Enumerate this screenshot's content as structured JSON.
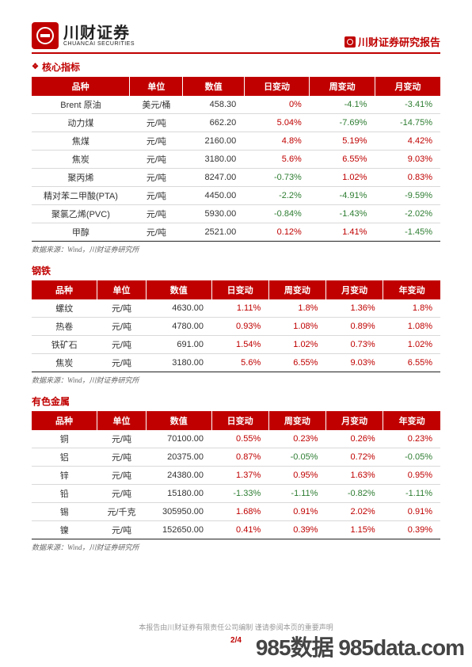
{
  "colors": {
    "primary": "#c00000",
    "positive": "#c00000",
    "negative": "#2e7d32",
    "border": "#d9d9d9",
    "bg": "#ffffff"
  },
  "header": {
    "brand_cn": "川财证券",
    "brand_en": "CHUANCAI SECURITIES",
    "report_label": "川财证券研究报告"
  },
  "section1": {
    "title": "核心指标",
    "columns": [
      "品种",
      "单位",
      "数值",
      "日变动",
      "周变动",
      "月变动"
    ],
    "rows": [
      {
        "name": "Brent 原油",
        "unit": "美元/桶",
        "value": "458.30",
        "d": "0%",
        "w": "-4.1%",
        "m": "-3.41%"
      },
      {
        "name": "动力煤",
        "unit": "元/吨",
        "value": "662.20",
        "d": "5.04%",
        "w": "-7.69%",
        "m": "-14.75%"
      },
      {
        "name": "焦煤",
        "unit": "元/吨",
        "value": "2160.00",
        "d": "4.8%",
        "w": "5.19%",
        "m": "4.42%"
      },
      {
        "name": "焦炭",
        "unit": "元/吨",
        "value": "3180.00",
        "d": "5.6%",
        "w": "6.55%",
        "m": "9.03%"
      },
      {
        "name": "聚丙烯",
        "unit": "元/吨",
        "value": "8247.00",
        "d": "-0.73%",
        "w": "1.02%",
        "m": "0.83%"
      },
      {
        "name": "精对苯二甲酸(PTA)",
        "unit": "元/吨",
        "value": "4450.00",
        "d": "-2.2%",
        "w": "-4.91%",
        "m": "-9.59%"
      },
      {
        "name": "聚氯乙烯(PVC)",
        "unit": "元/吨",
        "value": "5930.00",
        "d": "-0.84%",
        "w": "-1.43%",
        "m": "-2.02%"
      },
      {
        "name": "甲醇",
        "unit": "元/吨",
        "value": "2521.00",
        "d": "0.12%",
        "w": "1.41%",
        "m": "-1.45%"
      }
    ],
    "source": "数据来源：Wind，川财证券研究所"
  },
  "section2": {
    "title": "钢铁",
    "columns": [
      "品种",
      "单位",
      "数值",
      "日变动",
      "周变动",
      "月变动",
      "年变动"
    ],
    "rows": [
      {
        "name": "螺纹",
        "unit": "元/吨",
        "value": "4630.00",
        "d": "1.11%",
        "w": "1.8%",
        "m": "1.36%",
        "y": "1.8%"
      },
      {
        "name": "热卷",
        "unit": "元/吨",
        "value": "4780.00",
        "d": "0.93%",
        "w": "1.08%",
        "m": "0.89%",
        "y": "1.08%"
      },
      {
        "name": "铁矿石",
        "unit": "元/吨",
        "value": "691.00",
        "d": "1.54%",
        "w": "1.02%",
        "m": "0.73%",
        "y": "1.02%"
      },
      {
        "name": "焦炭",
        "unit": "元/吨",
        "value": "3180.00",
        "d": "5.6%",
        "w": "6.55%",
        "m": "9.03%",
        "y": "6.55%"
      }
    ],
    "source": "数据来源：Wind，川财证券研究所"
  },
  "section3": {
    "title": "有色金属",
    "columns": [
      "品种",
      "单位",
      "数值",
      "日变动",
      "周变动",
      "月变动",
      "年变动"
    ],
    "rows": [
      {
        "name": "铜",
        "unit": "元/吨",
        "value": "70100.00",
        "d": "0.55%",
        "w": "0.23%",
        "m": "0.26%",
        "y": "0.23%"
      },
      {
        "name": "铝",
        "unit": "元/吨",
        "value": "20375.00",
        "d": "0.87%",
        "w": "-0.05%",
        "m": "0.72%",
        "y": "-0.05%"
      },
      {
        "name": "锌",
        "unit": "元/吨",
        "value": "24380.00",
        "d": "1.37%",
        "w": "0.95%",
        "m": "1.63%",
        "y": "0.95%"
      },
      {
        "name": "铅",
        "unit": "元/吨",
        "value": "15180.00",
        "d": "-1.33%",
        "w": "-1.11%",
        "m": "-0.82%",
        "y": "-1.11%"
      },
      {
        "name": "锡",
        "unit": "元/千克",
        "value": "305950.00",
        "d": "1.68%",
        "w": "0.91%",
        "m": "2.02%",
        "y": "0.91%"
      },
      {
        "name": "镍",
        "unit": "元/吨",
        "value": "152650.00",
        "d": "0.41%",
        "w": "0.39%",
        "m": "1.15%",
        "y": "0.39%"
      }
    ],
    "source": "数据来源：Wind，川财证券研究所"
  },
  "footer": {
    "note": "本报告由川财证券有限责任公司编制  谨请参阅本页的重要声明",
    "page": "2/4",
    "watermark": "985数据 985data.com"
  }
}
